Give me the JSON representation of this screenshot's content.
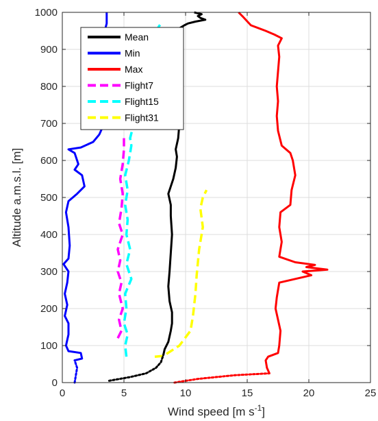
{
  "chart_data": {
    "type": "line",
    "xlabel": "Wind speed [m s",
    "xlabel_sup": "-1",
    "xlabel_end": "]",
    "ylabel": "Altitude a.m.s.l. [m]",
    "xlim": [
      0,
      25
    ],
    "ylim": [
      0,
      1000
    ],
    "grid": true,
    "legend_position": "top-left",
    "x_ticks": [
      "0",
      "5",
      "10",
      "15",
      "20",
      "25"
    ],
    "y_ticks": [
      "0",
      "100",
      "200",
      "300",
      "400",
      "500",
      "600",
      "700",
      "800",
      "900",
      "1000"
    ],
    "series": [
      {
        "name": "Mean",
        "color": "#000000",
        "style": "solid",
        "points": [
          [
            8.2,
            75
          ],
          [
            8.3,
            90
          ],
          [
            8.6,
            110
          ],
          [
            8.8,
            140
          ],
          [
            8.9,
            160
          ],
          [
            8.9,
            190
          ],
          [
            8.7,
            220
          ],
          [
            8.6,
            260
          ],
          [
            8.7,
            300
          ],
          [
            8.8,
            350
          ],
          [
            8.9,
            400
          ],
          [
            8.8,
            450
          ],
          [
            8.8,
            480
          ],
          [
            8.6,
            510
          ],
          [
            8.8,
            530
          ],
          [
            9.0,
            550
          ],
          [
            9.2,
            580
          ],
          [
            9.3,
            610
          ],
          [
            9.2,
            630
          ],
          [
            9.4,
            660
          ],
          [
            9.5,
            700
          ],
          [
            9.7,
            740
          ],
          [
            9.6,
            780
          ],
          [
            9.6,
            820
          ],
          [
            9.7,
            860
          ],
          [
            9.6,
            900
          ],
          [
            9.6,
            930
          ],
          [
            9.3,
            940
          ],
          [
            9.4,
            955
          ],
          [
            9.9,
            965
          ],
          [
            10.2,
            970
          ],
          [
            10.8,
            975
          ],
          [
            11.6,
            980
          ],
          [
            11.2,
            985
          ],
          [
            11.0,
            990
          ],
          [
            11.3,
            995
          ],
          [
            10.7,
            1000
          ]
        ]
      },
      {
        "name": "Min",
        "color": "#0000ff",
        "style": "solid",
        "points": [
          [
            1.0,
            60
          ],
          [
            1.6,
            65
          ],
          [
            1.5,
            80
          ],
          [
            0.5,
            85
          ],
          [
            0.3,
            100
          ],
          [
            0.5,
            130
          ],
          [
            0.5,
            160
          ],
          [
            0.2,
            180
          ],
          [
            0.4,
            210
          ],
          [
            0.2,
            240
          ],
          [
            0.4,
            270
          ],
          [
            0.5,
            300
          ],
          [
            0.1,
            320
          ],
          [
            0.5,
            335
          ],
          [
            0.6,
            370
          ],
          [
            0.5,
            420
          ],
          [
            0.3,
            460
          ],
          [
            0.5,
            490
          ],
          [
            1.2,
            510
          ],
          [
            1.8,
            530
          ],
          [
            1.6,
            560
          ],
          [
            1.0,
            575
          ],
          [
            1.3,
            590
          ],
          [
            1.0,
            620
          ],
          [
            0.5,
            630
          ],
          [
            1.5,
            635
          ],
          [
            2.5,
            650
          ],
          [
            3.0,
            670
          ],
          [
            3.4,
            700
          ],
          [
            3.6,
            750
          ],
          [
            3.8,
            790
          ],
          [
            3.5,
            840
          ],
          [
            3.6,
            880
          ],
          [
            3.8,
            910
          ],
          [
            3.4,
            925
          ],
          [
            3.4,
            945
          ],
          [
            3.6,
            970
          ],
          [
            3.6,
            1000
          ]
        ]
      },
      {
        "name": "Max",
        "color": "#ff0000",
        "style": "solid",
        "points": [
          [
            16.8,
            25
          ],
          [
            16.6,
            40
          ],
          [
            16.5,
            60
          ],
          [
            16.7,
            70
          ],
          [
            17.5,
            80
          ],
          [
            17.6,
            100
          ],
          [
            17.7,
            140
          ],
          [
            17.5,
            170
          ],
          [
            17.3,
            200
          ],
          [
            17.4,
            230
          ],
          [
            17.6,
            270
          ],
          [
            20.2,
            290
          ],
          [
            19.5,
            300
          ],
          [
            21.5,
            305
          ],
          [
            19.8,
            312
          ],
          [
            20.5,
            318
          ],
          [
            18.9,
            325
          ],
          [
            17.6,
            340
          ],
          [
            17.8,
            380
          ],
          [
            17.6,
            420
          ],
          [
            17.7,
            460
          ],
          [
            18.5,
            480
          ],
          [
            18.6,
            520
          ],
          [
            18.9,
            560
          ],
          [
            18.7,
            600
          ],
          [
            18.5,
            620
          ],
          [
            17.8,
            640
          ],
          [
            17.5,
            680
          ],
          [
            17.4,
            720
          ],
          [
            17.5,
            760
          ],
          [
            17.4,
            800
          ],
          [
            17.5,
            840
          ],
          [
            17.6,
            880
          ],
          [
            17.5,
            910
          ],
          [
            17.8,
            930
          ],
          [
            17.2,
            940
          ],
          [
            16.5,
            950
          ],
          [
            15.3,
            965
          ],
          [
            14.6,
            990
          ],
          [
            14.3,
            1000
          ]
        ]
      },
      {
        "name": "Flight7",
        "color": "#ff00ff",
        "style": "dashed",
        "points": [
          [
            4.5,
            120
          ],
          [
            4.8,
            140
          ],
          [
            4.6,
            170
          ],
          [
            4.9,
            200
          ],
          [
            4.6,
            240
          ],
          [
            4.8,
            270
          ],
          [
            4.5,
            300
          ],
          [
            4.7,
            330
          ],
          [
            4.5,
            360
          ],
          [
            4.9,
            400
          ],
          [
            4.6,
            430
          ],
          [
            4.8,
            470
          ],
          [
            4.9,
            510
          ],
          [
            4.7,
            550
          ],
          [
            4.9,
            590
          ],
          [
            5.0,
            630
          ],
          [
            5.0,
            670
          ]
        ]
      },
      {
        "name": "Flight15",
        "color": "#00ffff",
        "style": "dashed",
        "points": [
          [
            5.2,
            70
          ],
          [
            5.1,
            100
          ],
          [
            5.3,
            130
          ],
          [
            5.0,
            160
          ],
          [
            5.2,
            200
          ],
          [
            5.1,
            240
          ],
          [
            5.6,
            280
          ],
          [
            5.2,
            320
          ],
          [
            5.5,
            360
          ],
          [
            5.2,
            400
          ],
          [
            5.3,
            440
          ],
          [
            5.1,
            480
          ],
          [
            5.3,
            520
          ],
          [
            5.1,
            560
          ],
          [
            5.4,
            600
          ],
          [
            5.6,
            640
          ],
          [
            5.5,
            660
          ],
          [
            7.8,
            960
          ],
          [
            8.1,
            975
          ]
        ]
      },
      {
        "name": "Flight31",
        "color": "#ffff00",
        "style": "dashed",
        "points": [
          [
            7.5,
            70
          ],
          [
            8.2,
            72
          ],
          [
            9.5,
            100
          ],
          [
            10.4,
            140
          ],
          [
            10.6,
            180
          ],
          [
            10.8,
            240
          ],
          [
            10.9,
            290
          ],
          [
            11.1,
            360
          ],
          [
            11.4,
            420
          ],
          [
            11.2,
            470
          ],
          [
            11.4,
            500
          ],
          [
            11.7,
            520
          ]
        ]
      },
      {
        "name": "",
        "color": "#000000",
        "style": "dotted",
        "points": [
          [
            3.8,
            5
          ],
          [
            5.5,
            15
          ],
          [
            6.8,
            25
          ],
          [
            7.6,
            40
          ],
          [
            8.0,
            55
          ],
          [
            8.2,
            75
          ]
        ]
      },
      {
        "name": "",
        "color": "#0000ff",
        "style": "dotted",
        "points": [
          [
            1.0,
            0
          ],
          [
            1.1,
            20
          ],
          [
            1.2,
            40
          ],
          [
            1.0,
            60
          ]
        ]
      },
      {
        "name": "",
        "color": "#ff0000",
        "style": "dotted",
        "points": [
          [
            9.1,
            0
          ],
          [
            11.0,
            10
          ],
          [
            14.0,
            20
          ],
          [
            16.8,
            25
          ]
        ]
      }
    ],
    "legend": [
      {
        "label": "Mean",
        "color": "#000000",
        "style": "solid"
      },
      {
        "label": "Min",
        "color": "#0000ff",
        "style": "solid"
      },
      {
        "label": "Max",
        "color": "#ff0000",
        "style": "solid"
      },
      {
        "label": "Flight7",
        "color": "#ff00ff",
        "style": "dashed"
      },
      {
        "label": "Flight15",
        "color": "#00ffff",
        "style": "dashed"
      },
      {
        "label": "Flight31",
        "color": "#ffff00",
        "style": "dashed"
      }
    ]
  }
}
